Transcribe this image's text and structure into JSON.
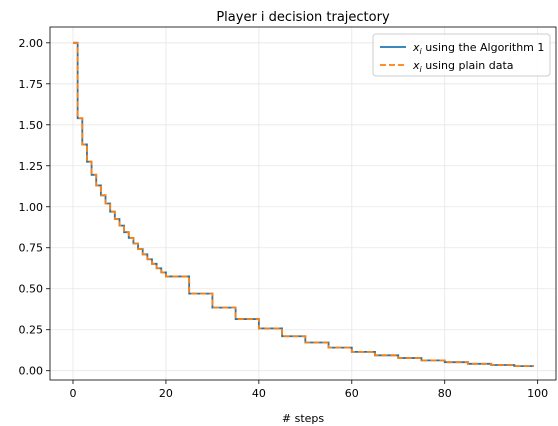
{
  "chart_data": {
    "type": "line",
    "title": "Player i decision trajectory",
    "xlabel": "# steps",
    "ylabel": "",
    "xlim": [
      -4.95,
      103.95
    ],
    "ylim": [
      -0.0567,
      2.0965
    ],
    "xticks": [
      0,
      20,
      40,
      60,
      80,
      100
    ],
    "xtick_labels": [
      "0",
      "20",
      "40",
      "60",
      "80",
      "100"
    ],
    "yticks": [
      0.0,
      0.25,
      0.5,
      0.75,
      1.0,
      1.25,
      1.5,
      1.75,
      2.0
    ],
    "ytick_labels": [
      "0.00",
      "0.25",
      "0.50",
      "0.75",
      "1.00",
      "1.25",
      "1.50",
      "1.75",
      "2.00"
    ],
    "grid": true,
    "legend_position": "top-right",
    "legend_entries": [
      {
        "prefix": "x",
        "sub": "i",
        "text": " using the Algorithm 1"
      },
      {
        "prefix": "x",
        "sub": "i",
        "text": " using plain data"
      }
    ],
    "series": [
      {
        "name": "x_i using the Algorithm 1",
        "color": "#1f77b4",
        "style": "solid",
        "step": true,
        "x": [
          0,
          1,
          2,
          3,
          4,
          5,
          6,
          7,
          8,
          9,
          10,
          11,
          12,
          13,
          14,
          15,
          16,
          17,
          18,
          19,
          20,
          25,
          30,
          35,
          40,
          45,
          50,
          55,
          60,
          65,
          70,
          75,
          80,
          85,
          90,
          95,
          99
        ],
        "y": [
          2.0,
          1.54,
          1.38,
          1.275,
          1.195,
          1.13,
          1.07,
          1.02,
          0.97,
          0.925,
          0.885,
          0.845,
          0.81,
          0.775,
          0.742,
          0.71,
          0.68,
          0.652,
          0.625,
          0.6,
          0.575,
          0.47,
          0.385,
          0.315,
          0.258,
          0.21,
          0.172,
          0.141,
          0.115,
          0.094,
          0.077,
          0.063,
          0.052,
          0.042,
          0.035,
          0.028,
          0.024
        ]
      },
      {
        "name": "x_i using plain data",
        "color": "#ff7f0e",
        "style": "dashed",
        "step": true,
        "x": [
          0,
          1,
          2,
          3,
          4,
          5,
          6,
          7,
          8,
          9,
          10,
          11,
          12,
          13,
          14,
          15,
          16,
          17,
          18,
          19,
          20,
          25,
          30,
          35,
          40,
          45,
          50,
          55,
          60,
          65,
          70,
          75,
          80,
          85,
          90,
          95,
          99
        ],
        "y": [
          2.0,
          1.54,
          1.38,
          1.275,
          1.195,
          1.13,
          1.07,
          1.02,
          0.97,
          0.925,
          0.885,
          0.845,
          0.81,
          0.775,
          0.742,
          0.71,
          0.68,
          0.652,
          0.625,
          0.6,
          0.575,
          0.47,
          0.385,
          0.315,
          0.258,
          0.21,
          0.172,
          0.141,
          0.115,
          0.094,
          0.077,
          0.063,
          0.052,
          0.042,
          0.035,
          0.028,
          0.024
        ]
      }
    ]
  }
}
